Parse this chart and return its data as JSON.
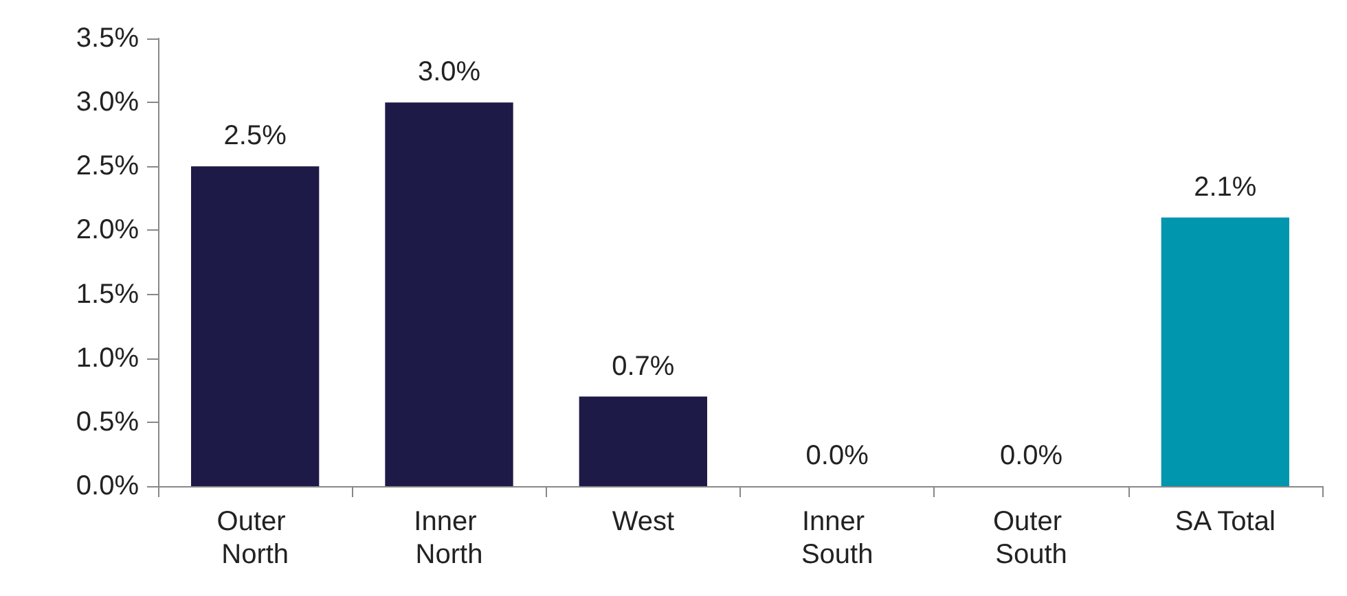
{
  "chart_data": {
    "type": "bar",
    "categories": [
      "Outer North",
      "Inner North",
      "West",
      "Inner South",
      "Outer South",
      "SA Total"
    ],
    "values": [
      2.5,
      3.0,
      0.7,
      0.0,
      0.0,
      2.1
    ],
    "colors": [
      "#1e1a47",
      "#1e1a47",
      "#1e1a47",
      "#1e1a47",
      "#1e1a47",
      "#0096ad"
    ],
    "value_labels": [
      "2.5%",
      "3.0%",
      "0.7%",
      "0.0%",
      "0.0%",
      "2.1%"
    ],
    "ylim": [
      0,
      3.5
    ],
    "yticks": [
      {
        "value": 0,
        "label": "0.0%"
      },
      {
        "value": 0.5,
        "label": "0.5%"
      },
      {
        "value": 1,
        "label": "1.0%"
      },
      {
        "value": 1.5,
        "label": "1.5%"
      },
      {
        "value": 2,
        "label": "2.0%"
      },
      {
        "value": 2.5,
        "label": "2.5%"
      },
      {
        "value": 3,
        "label": "3.0%"
      },
      {
        "value": 3.5,
        "label": "3.5%"
      }
    ],
    "grid": false
  }
}
